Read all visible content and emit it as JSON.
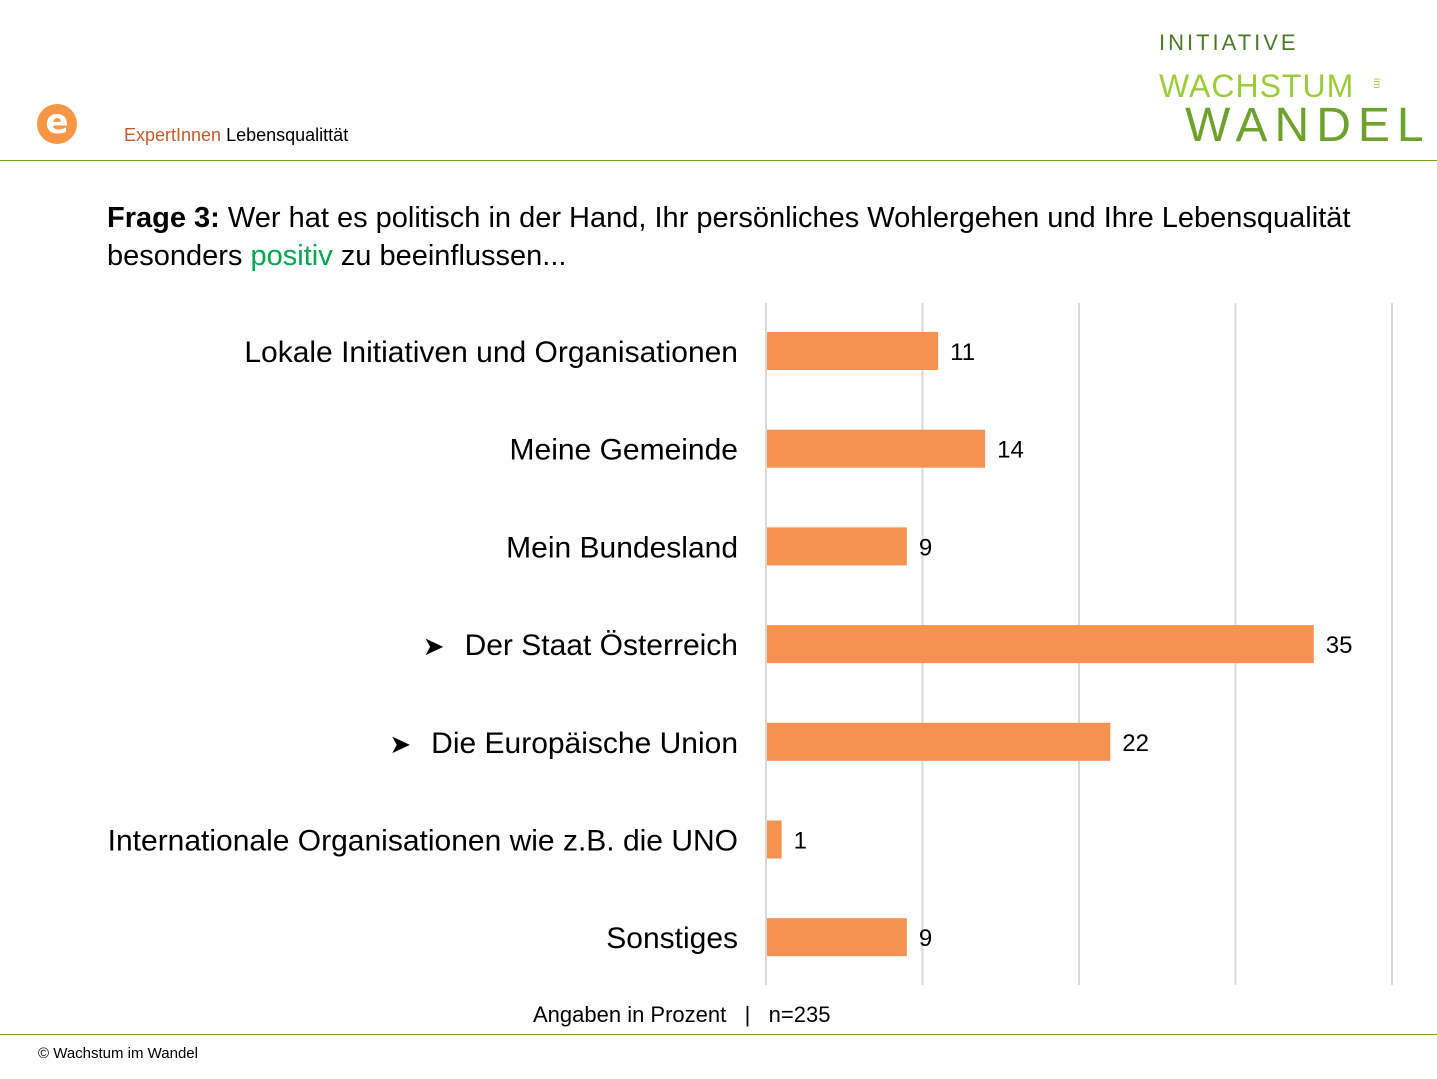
{
  "header": {
    "logo_letter": "e",
    "label_accent": "ExpertInnen",
    "label_rest": "Lebensqualittät"
  },
  "brand": {
    "line1": "INITIATIVE",
    "line2": "WACHSTUM",
    "line2_small": "im",
    "line3": "WANDEL"
  },
  "question": {
    "number": "Frage 3:",
    "text_before": " Wer hat es politisch in der Hand, Ihr persönliches Wohlergehen und Ihre Lebensqualität besonders ",
    "highlight": "positiv",
    "text_after": " zu beeinflussen..."
  },
  "chart_data": {
    "type": "bar",
    "orientation": "horizontal",
    "categories": [
      "Lokale Initiativen und Organisationen",
      "Meine Gemeinde",
      "Mein Bundesland",
      "Der Staat Österreich",
      "Die Europäische Union",
      "Internationale Organisationen wie z.B. die UNO",
      "Sonstiges"
    ],
    "values": [
      11,
      14,
      9,
      35,
      22,
      1,
      9
    ],
    "highlighted": [
      false,
      false,
      false,
      true,
      true,
      false,
      false
    ],
    "marker_symbol": "➤",
    "bar_color": "#f79150",
    "grid_color": "#d9d9d9",
    "xlim": [
      0,
      40
    ],
    "gridlines": [
      0,
      10,
      20,
      30,
      40
    ],
    "grid": true,
    "data_labels": true
  },
  "footer": {
    "note": "Angaben in Prozent   |   n=235",
    "copyright": "© Wachstum im Wandel"
  }
}
